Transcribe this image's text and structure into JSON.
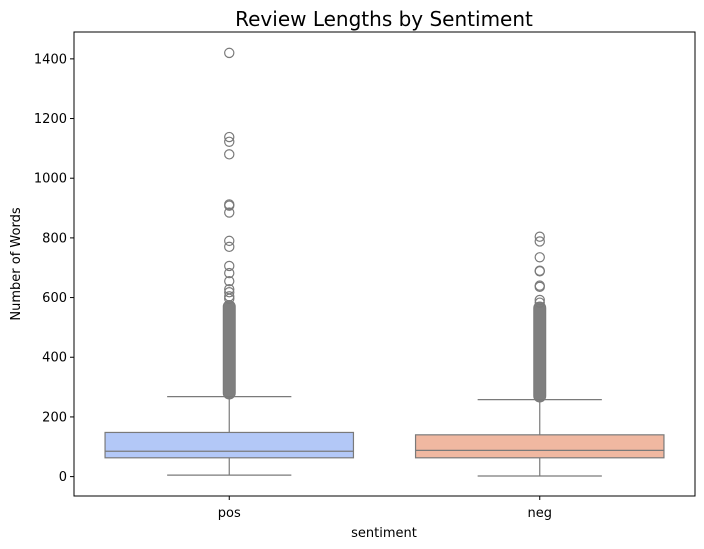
{
  "chart_data": {
    "type": "box",
    "title": "Review Lengths by Sentiment",
    "xlabel": "sentiment",
    "ylabel": "Number of Words",
    "ylim": [
      -65,
      1490
    ],
    "yticks": [
      0,
      200,
      400,
      600,
      800,
      1000,
      1200,
      1400
    ],
    "categories": [
      "pos",
      "neg"
    ],
    "grid": false,
    "legend": "none",
    "series": [
      {
        "category": "pos",
        "color": "#b3c8f7",
        "whisker_low": 5,
        "q1": 63,
        "median": 85,
        "q3": 148,
        "whisker_high": 268,
        "outliers": [
          1420,
          1138,
          1122,
          1080,
          912,
          908,
          885,
          790,
          770,
          706,
          682,
          655,
          628,
          618,
          604,
          596
        ]
      },
      {
        "category": "neg",
        "color": "#f0b8a1",
        "whisker_low": 2,
        "q1": 63,
        "median": 88,
        "q3": 140,
        "whisker_high": 258,
        "outliers": [
          804,
          788,
          735,
          690,
          688,
          640,
          636,
          592,
          583
        ]
      }
    ],
    "dense_outliers": [
      {
        "category": "pos",
        "from": 270,
        "to": 580
      },
      {
        "category": "neg",
        "from": 260,
        "to": 575
      }
    ],
    "line_color": "#7a7a7a"
  }
}
